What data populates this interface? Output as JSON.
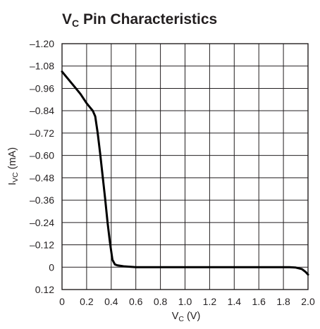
{
  "chart_data": {
    "type": "line",
    "title": {
      "main": "V",
      "sub": "C",
      "rest": " Pin Characteristics"
    },
    "xlabel": {
      "main": "V",
      "sub": "C",
      "rest": " (V)"
    },
    "ylabel": {
      "main": "I",
      "sub": "VC",
      "rest": " (mA)"
    },
    "xlim": [
      0,
      2.0
    ],
    "ylim": [
      0.12,
      -1.2
    ],
    "x_ticks": [
      "0",
      "0.2",
      "0.4",
      "0.6",
      "0.8",
      "1.0",
      "1.2",
      "1.4",
      "1.6",
      "1.8",
      "2.0"
    ],
    "y_ticks": [
      "–1.20",
      "–1.08",
      "–0.96",
      "–0.84",
      "–0.72",
      "–0.60",
      "–0.48",
      "–0.36",
      "–0.24",
      "–0.12",
      "0",
      "0.12"
    ],
    "grid": true,
    "series": [
      {
        "color": "#000000",
        "x": [
          0,
          0.05,
          0.1,
          0.15,
          0.2,
          0.25,
          0.27,
          0.29,
          0.31,
          0.33,
          0.35,
          0.37,
          0.39,
          0.41,
          0.43,
          0.45,
          0.5,
          0.6,
          0.8,
          1.0,
          1.2,
          1.4,
          1.6,
          1.8,
          1.85,
          1.9,
          1.95,
          1.98,
          2.0
        ],
        "y": [
          -1.05,
          -1.01,
          -0.97,
          -0.93,
          -0.88,
          -0.84,
          -0.81,
          -0.72,
          -0.61,
          -0.49,
          -0.37,
          -0.24,
          -0.13,
          -0.04,
          -0.015,
          -0.01,
          -0.005,
          0,
          0,
          0,
          0,
          0,
          0,
          0,
          0,
          0.002,
          0.01,
          0.025,
          0.04
        ]
      }
    ]
  }
}
